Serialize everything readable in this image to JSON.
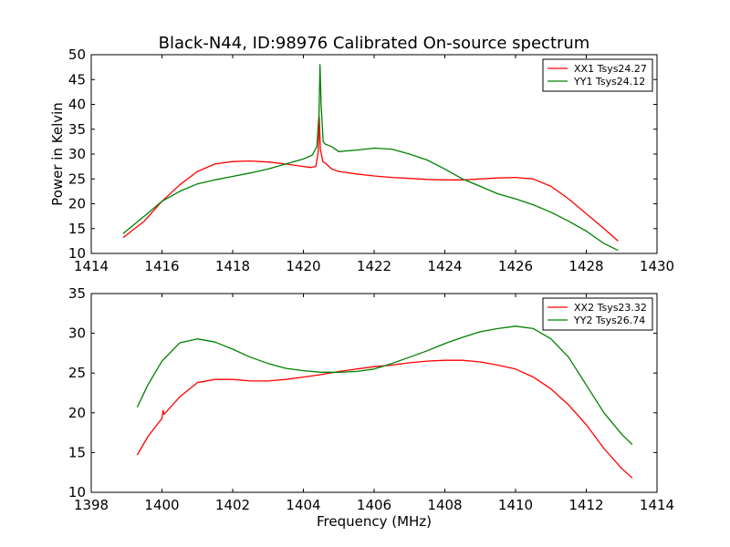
{
  "figure": {
    "title": "Black-N44, ID:98976 Calibrated On-source spectrum"
  },
  "chart_data": [
    {
      "type": "line",
      "title": "Black-N44, ID:98976 Calibrated On-source spectrum",
      "xlabel": "",
      "ylabel": "Power in Kelvin",
      "xlim": [
        1414,
        1430
      ],
      "ylim": [
        10,
        50
      ],
      "xticks": [
        1414,
        1416,
        1418,
        1420,
        1422,
        1424,
        1426,
        1428,
        1430
      ],
      "yticks": [
        10,
        15,
        20,
        25,
        30,
        35,
        40,
        45,
        50
      ],
      "grid": false,
      "legend_position": "top-right",
      "series": [
        {
          "name": "XX1 Tsys24.27",
          "color": "#ff0000",
          "x": [
            1414.9,
            1415.5,
            1416.0,
            1416.5,
            1417.0,
            1417.5,
            1418.0,
            1418.5,
            1419.0,
            1419.5,
            1420.0,
            1420.2,
            1420.35,
            1420.42,
            1420.45,
            1420.48,
            1420.55,
            1420.65,
            1420.8,
            1421.0,
            1421.5,
            1422.0,
            1422.5,
            1423.0,
            1423.5,
            1424.0,
            1424.5,
            1425.0,
            1425.5,
            1426.0,
            1426.5,
            1427.0,
            1427.5,
            1428.0,
            1428.5,
            1428.9
          ],
          "values": [
            13.2,
            16.5,
            20.5,
            23.8,
            26.5,
            28.0,
            28.5,
            28.6,
            28.4,
            28.0,
            27.5,
            27.3,
            27.5,
            30.5,
            37.5,
            31.0,
            28.5,
            28.0,
            27.0,
            26.5,
            26.0,
            25.6,
            25.3,
            25.1,
            24.9,
            24.8,
            24.8,
            25.0,
            25.2,
            25.3,
            25.0,
            23.5,
            21.0,
            18.0,
            15.0,
            12.5
          ]
        },
        {
          "name": "YY1 Tsys24.12",
          "color": "#008000",
          "x": [
            1414.9,
            1415.5,
            1416.0,
            1416.5,
            1417.0,
            1417.5,
            1418.0,
            1418.5,
            1419.0,
            1419.5,
            1420.0,
            1420.25,
            1420.38,
            1420.44,
            1420.47,
            1420.5,
            1420.56,
            1420.62,
            1420.8,
            1421.0,
            1421.5,
            1422.0,
            1422.5,
            1423.0,
            1423.5,
            1424.0,
            1424.5,
            1425.0,
            1425.5,
            1426.0,
            1426.5,
            1427.0,
            1427.5,
            1428.0,
            1428.5,
            1428.9
          ],
          "values": [
            14.0,
            17.5,
            20.5,
            22.5,
            24.0,
            24.8,
            25.5,
            26.2,
            27.0,
            28.0,
            29.0,
            29.8,
            31.5,
            38.0,
            48.0,
            40.0,
            32.5,
            32.0,
            31.5,
            30.5,
            30.8,
            31.2,
            31.0,
            30.0,
            28.8,
            27.0,
            25.0,
            23.5,
            22.0,
            21.0,
            19.8,
            18.3,
            16.5,
            14.5,
            12.0,
            10.6
          ]
        }
      ]
    },
    {
      "type": "line",
      "title": "",
      "xlabel": "Frequency (MHz)",
      "ylabel": "",
      "xlim": [
        1398,
        1414
      ],
      "ylim": [
        10,
        35
      ],
      "xticks": [
        1398,
        1400,
        1402,
        1404,
        1406,
        1408,
        1410,
        1412,
        1414
      ],
      "yticks": [
        10,
        15,
        20,
        25,
        30,
        35
      ],
      "grid": false,
      "legend_position": "top-right",
      "series": [
        {
          "name": "XX2 Tsys23.32",
          "color": "#ff0000",
          "x": [
            1399.3,
            1399.6,
            1400.0,
            1400.03,
            1400.06,
            1400.5,
            1401.0,
            1401.5,
            1402.0,
            1402.5,
            1403.0,
            1403.5,
            1404.0,
            1404.5,
            1405.0,
            1405.5,
            1406.0,
            1406.5,
            1407.0,
            1407.5,
            1408.0,
            1408.5,
            1409.0,
            1409.5,
            1410.0,
            1410.5,
            1411.0,
            1411.5,
            1412.0,
            1412.5,
            1413.0,
            1413.3
          ],
          "values": [
            14.7,
            17.0,
            19.3,
            20.3,
            19.8,
            22.0,
            23.8,
            24.2,
            24.2,
            24.0,
            24.0,
            24.2,
            24.5,
            24.8,
            25.2,
            25.5,
            25.8,
            26.0,
            26.3,
            26.5,
            26.6,
            26.6,
            26.4,
            26.0,
            25.5,
            24.5,
            23.0,
            21.0,
            18.5,
            15.5,
            13.0,
            11.8
          ]
        },
        {
          "name": "YY2 Tsys26.74",
          "color": "#008000",
          "x": [
            1399.3,
            1399.6,
            1400.0,
            1400.5,
            1401.0,
            1401.5,
            1402.0,
            1402.5,
            1403.0,
            1403.5,
            1404.0,
            1404.5,
            1405.0,
            1405.5,
            1406.0,
            1406.5,
            1407.0,
            1407.5,
            1408.0,
            1408.5,
            1409.0,
            1409.5,
            1410.0,
            1410.5,
            1411.0,
            1411.5,
            1412.0,
            1412.5,
            1413.0,
            1413.3
          ],
          "values": [
            20.7,
            23.5,
            26.5,
            28.8,
            29.3,
            28.9,
            28.0,
            27.0,
            26.2,
            25.6,
            25.3,
            25.1,
            25.1,
            25.2,
            25.5,
            26.2,
            27.0,
            27.8,
            28.7,
            29.5,
            30.2,
            30.6,
            30.9,
            30.6,
            29.3,
            27.0,
            23.5,
            20.0,
            17.3,
            16.0
          ]
        }
      ]
    }
  ]
}
